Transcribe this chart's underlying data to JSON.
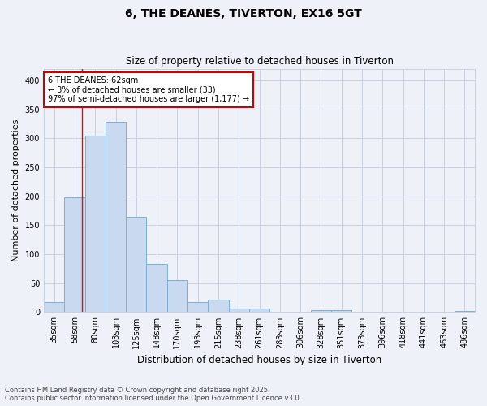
{
  "title": "6, THE DEANES, TIVERTON, EX16 5GT",
  "subtitle": "Size of property relative to detached houses in Tiverton",
  "xlabel": "Distribution of detached houses by size in Tiverton",
  "ylabel": "Number of detached properties",
  "categories": [
    "35sqm",
    "58sqm",
    "80sqm",
    "103sqm",
    "125sqm",
    "148sqm",
    "170sqm",
    "193sqm",
    "215sqm",
    "238sqm",
    "261sqm",
    "283sqm",
    "306sqm",
    "328sqm",
    "351sqm",
    "373sqm",
    "396sqm",
    "418sqm",
    "441sqm",
    "463sqm",
    "486sqm"
  ],
  "values": [
    18,
    198,
    305,
    328,
    165,
    83,
    55,
    17,
    22,
    6,
    6,
    0,
    0,
    4,
    4,
    0,
    0,
    0,
    0,
    0,
    2
  ],
  "bar_color": "#c9d9f0",
  "bar_edge_color": "#7bafd4",
  "grid_color": "#c8d0e0",
  "bg_color": "#eef2f8",
  "red_line_x": 1.35,
  "annotation_text": "6 THE DEANES: 62sqm\n← 3% of detached houses are smaller (33)\n97% of semi-detached houses are larger (1,177) →",
  "annotation_box_color": "#ffffff",
  "annotation_box_edge": "#cc0000",
  "footnote": "Contains HM Land Registry data © Crown copyright and database right 2025.\nContains public sector information licensed under the Open Government Licence v3.0.",
  "ylim": [
    0,
    420
  ],
  "yticks": [
    0,
    50,
    100,
    150,
    200,
    250,
    300,
    350,
    400
  ],
  "title_fontsize": 10,
  "subtitle_fontsize": 8.5,
  "ylabel_fontsize": 8,
  "xlabel_fontsize": 8.5,
  "tick_fontsize": 7,
  "annot_fontsize": 7,
  "footnote_fontsize": 6
}
